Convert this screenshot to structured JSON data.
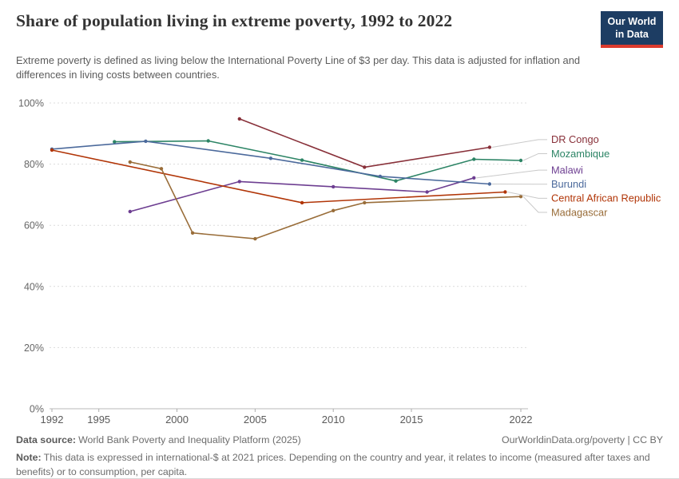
{
  "header": {
    "title": "Share of population living in extreme poverty, 1992 to 2022",
    "subtitle": "Extreme poverty is defined as living below the International Poverty Line of $3 per day. This data is adjusted for inflation and differences in living costs between countries.",
    "logo": {
      "line1": "Our World",
      "line2": "in Data",
      "bg_color": "#1d3d63",
      "accent_color": "#dc3b2e"
    }
  },
  "chart_data": {
    "type": "line",
    "title": "Share of population living in extreme poverty, 1992 to 2022",
    "subtitle": "Extreme poverty is defined as living below the International Poverty Line of $3 per day. This data is adjusted for inflation and differences in living costs between countries.",
    "xlabel": "",
    "ylabel": "",
    "xlim": [
      1992,
      2022
    ],
    "ylim": [
      0,
      100
    ],
    "x_ticks": [
      1992,
      1995,
      2000,
      2005,
      2010,
      2015,
      2022
    ],
    "y_ticks": [
      0,
      20,
      40,
      60,
      80,
      100
    ],
    "y_tick_suffix": "%",
    "grid": "horizontal-dashed",
    "legend_position": "right-line-end-labels",
    "series": [
      {
        "name": "DR Congo",
        "color": "#883039",
        "points": [
          [
            2004,
            94.8
          ],
          [
            2012,
            79.0
          ],
          [
            2020,
            85.5
          ]
        ]
      },
      {
        "name": "Mozambique",
        "color": "#2C8465",
        "points": [
          [
            1996,
            87.3
          ],
          [
            2002,
            87.6
          ],
          [
            2008,
            81.3
          ],
          [
            2014,
            74.5
          ],
          [
            2019,
            81.6
          ],
          [
            2022,
            81.2
          ]
        ]
      },
      {
        "name": "Malawi",
        "color": "#6D3E91",
        "points": [
          [
            1997,
            64.5
          ],
          [
            2004,
            74.3
          ],
          [
            2010,
            72.6
          ],
          [
            2016,
            70.9
          ],
          [
            2019,
            75.5
          ]
        ]
      },
      {
        "name": "Burundi",
        "color": "#4C6A9C",
        "points": [
          [
            1992,
            84.9
          ],
          [
            1998,
            87.5
          ],
          [
            2006,
            81.9
          ],
          [
            2013,
            76.0
          ],
          [
            2020,
            73.5
          ]
        ]
      },
      {
        "name": "Central African Republic",
        "color": "#B13507",
        "points": [
          [
            1992,
            84.6
          ],
          [
            2008,
            67.4
          ],
          [
            2021,
            70.9
          ]
        ]
      },
      {
        "name": "Madagascar",
        "color": "#996D39",
        "points": [
          [
            1997,
            80.7
          ],
          [
            1999,
            78.5
          ],
          [
            2001,
            57.5
          ],
          [
            2005,
            55.6
          ],
          [
            2010,
            64.8
          ],
          [
            2012,
            67.4
          ],
          [
            2022,
            69.4
          ]
        ]
      }
    ]
  },
  "footer": {
    "datasource_label": "Data source:",
    "datasource": "World Bank Poverty and Inequality Platform (2025)",
    "link": "OurWorldinData.org/poverty | CC BY",
    "note_label": "Note:",
    "note": "This data is expressed in international-$ at 2021 prices. Depending on the country and year, it relates to income (measured after taxes and benefits) or to consumption, per capita."
  }
}
